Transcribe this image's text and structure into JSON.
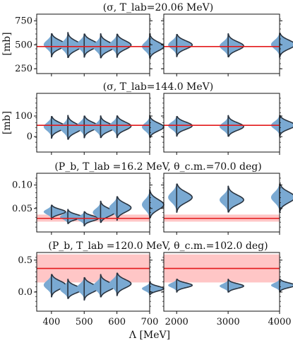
{
  "chart_data": {
    "type": "violin",
    "xlabel": "Λ [MeV]",
    "colors": {
      "violin_fill": "#7aa9d2",
      "violin_edge": "#2a3440",
      "reference_line": "#e31a1c",
      "band": "#ffb3b3"
    },
    "rows": [
      {
        "title": "(σ, T_lab=20.06 MeV)",
        "ylabel": "[mb]",
        "ylim": [
          200,
          820
        ],
        "yticks": [
          250,
          500,
          750
        ],
        "yticklabels": [
          "250",
          "500",
          "750"
        ],
        "reference": 482,
        "left_violins": [
          {
            "x": 400,
            "center": 495,
            "spread": 240
          },
          {
            "x": 450,
            "center": 498,
            "spread": 260
          },
          {
            "x": 500,
            "center": 492,
            "spread": 240
          },
          {
            "x": 550,
            "center": 490,
            "spread": 250
          },
          {
            "x": 600,
            "center": 490,
            "spread": 240
          },
          {
            "x": 700,
            "center": 490,
            "spread": 250
          }
        ],
        "right_violins": [
          {
            "x": 2000,
            "center": 492,
            "spread": 230
          },
          {
            "x": 3000,
            "center": 495,
            "spread": 240
          },
          {
            "x": 4000,
            "center": 495,
            "spread": 250
          }
        ]
      },
      {
        "title": "(σ, T_lab=144.0 MeV)",
        "ylabel": "[mb]",
        "ylim": [
          -75,
          210
        ],
        "yticks": [
          0,
          100
        ],
        "yticklabels": [
          "0",
          "100"
        ],
        "reference": 55,
        "left_violins": [
          {
            "x": 400,
            "center": 45,
            "spread": 105
          },
          {
            "x": 450,
            "center": 45,
            "spread": 115
          },
          {
            "x": 500,
            "center": 47,
            "spread": 105
          },
          {
            "x": 550,
            "center": 48,
            "spread": 105
          },
          {
            "x": 600,
            "center": 48,
            "spread": 105
          },
          {
            "x": 700,
            "center": 50,
            "spread": 105
          }
        ],
        "right_violins": [
          {
            "x": 2000,
            "center": 50,
            "spread": 95
          },
          {
            "x": 3000,
            "center": 52,
            "spread": 100
          },
          {
            "x": 4000,
            "center": 52,
            "spread": 100
          }
        ]
      },
      {
        "title": "(P_b, T_lab =16.2 MeV, θ_c.m.=70.0 deg)",
        "ylim": [
          0.0,
          0.125
        ],
        "yticks": [
          0.05,
          0.1
        ],
        "yticklabels": [
          "0.05",
          "0.10"
        ],
        "reference": 0.029,
        "band": [
          0.022,
          0.037
        ],
        "left_violins": [
          {
            "x": 400,
            "center": 0.042,
            "spread": 0.03
          },
          {
            "x": 450,
            "center": 0.033,
            "spread": 0.03
          },
          {
            "x": 500,
            "center": 0.028,
            "spread": 0.03
          },
          {
            "x": 550,
            "center": 0.043,
            "spread": 0.045
          },
          {
            "x": 600,
            "center": 0.05,
            "spread": 0.05
          },
          {
            "x": 700,
            "center": 0.06,
            "spread": 0.06
          }
        ],
        "right_violins": [
          {
            "x": 2000,
            "center": 0.072,
            "spread": 0.06
          },
          {
            "x": 3000,
            "center": 0.07,
            "spread": 0.055
          },
          {
            "x": 4000,
            "center": 0.072,
            "spread": 0.06
          }
        ]
      },
      {
        "title": "(P_b, T_lab =120.0 MeV, θ_c.m.=102.0 deg)",
        "ylim": [
          -0.3,
          0.62
        ],
        "yticks": [
          0.0,
          0.5
        ],
        "yticklabels": [
          "0.0",
          "0.5"
        ],
        "reference": 0.37,
        "band": [
          0.15,
          0.59
        ],
        "left_violins": [
          {
            "x": 400,
            "center": 0.1,
            "spread": 0.35
          },
          {
            "x": 450,
            "center": 0.05,
            "spread": 0.3
          },
          {
            "x": 500,
            "center": 0.05,
            "spread": 0.35
          },
          {
            "x": 550,
            "center": 0.1,
            "spread": 0.35
          },
          {
            "x": 600,
            "center": 0.12,
            "spread": 0.35
          },
          {
            "x": 700,
            "center": 0.06,
            "spread": 0.2
          }
        ],
        "right_violins": [
          {
            "x": 2000,
            "center": 0.1,
            "spread": 0.2
          },
          {
            "x": 3000,
            "center": 0.1,
            "spread": 0.2
          },
          {
            "x": 4000,
            "center": 0.1,
            "spread": 0.2
          }
        ]
      }
    ],
    "left_x": {
      "xlim": [
        355,
        700
      ],
      "ticks": [
        400,
        500,
        600,
        700
      ],
      "ticklabels": [
        "400",
        "500",
        "600",
        "700"
      ]
    },
    "right_x": {
      "xlim": [
        1750,
        4000
      ],
      "ticks": [
        2000,
        3000,
        4000
      ],
      "ticklabels": [
        "2000",
        "3000",
        "4000"
      ]
    }
  }
}
